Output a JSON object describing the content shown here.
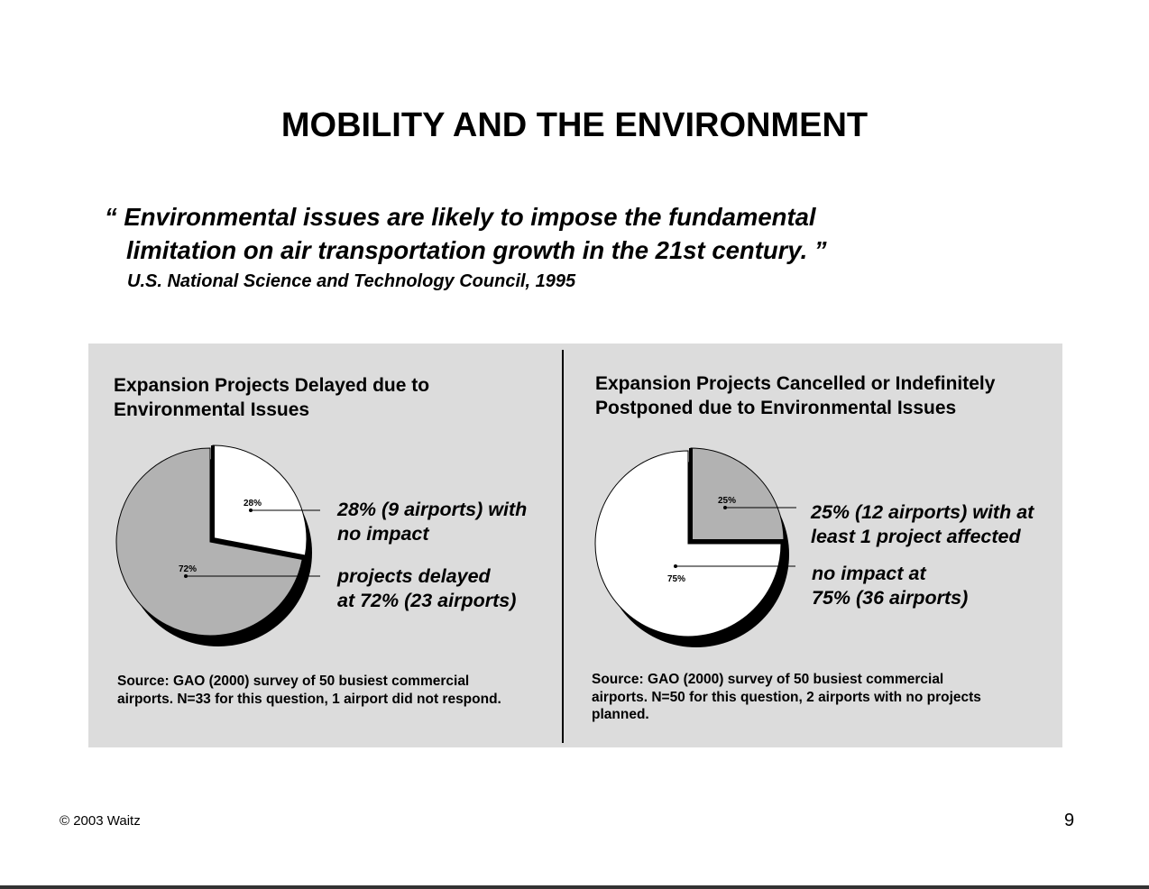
{
  "slide": {
    "title": "MOBILITY AND THE ENVIRONMENT",
    "quote_line1": "“ Environmental issues are likely to impose the fundamental",
    "quote_line2": "limitation on air transportation growth in the 21st century. ”",
    "attribution": "U.S. National Science and Technology Council, 1995",
    "copyright": "© 2003 Waitz",
    "page_number": "9"
  },
  "colors": {
    "panel_bg": "#dcdcdc",
    "slice_gray": "#b2b2b2",
    "slice_white": "#ffffff",
    "shadow": "#000000"
  },
  "left": {
    "title_line1": "Expansion Projects Delayed due to",
    "title_line2": "Environmental Issues",
    "label_a_line1": "28% (9 airports) with",
    "label_a_line2": "no impact",
    "label_b_line1": "projects delayed",
    "label_b_line2": "at 72% (23 airports)",
    "source_line1": "Source: GAO (2000) survey of 50 busiest commercial",
    "source_line2": "airports. N=33 for this question, 1 airport did not respond."
  },
  "right": {
    "title_line1": "Expansion Projects Cancelled or Indefinitely",
    "title_line2": "Postponed due to Environmental Issues",
    "label_a_line1": "25% (12 airports) with at",
    "label_a_line2": "least 1 project affected",
    "label_b_line1": "no impact at",
    "label_b_line2": "75% (36 airports)",
    "source_line1": "Source: GAO (2000) survey of 50 busiest commercial",
    "source_line2": "airports. N=50 for this question, 2 airports with no projects",
    "source_line3": "planned."
  },
  "chart_data": [
    {
      "type": "pie",
      "title": "Expansion Projects Delayed due to Environmental Issues",
      "slices": [
        {
          "label": "28%",
          "value": 28,
          "color": "#ffffff",
          "exploded": true
        },
        {
          "label": "72%",
          "value": 72,
          "color": "#b2b2b2",
          "exploded": false
        }
      ]
    },
    {
      "type": "pie",
      "title": "Expansion Projects Cancelled or Indefinitely Postponed due to Environmental Issues",
      "slices": [
        {
          "label": "25%",
          "value": 25,
          "color": "#b2b2b2",
          "exploded": true
        },
        {
          "label": "75%",
          "value": 75,
          "color": "#ffffff",
          "exploded": false
        }
      ]
    }
  ]
}
